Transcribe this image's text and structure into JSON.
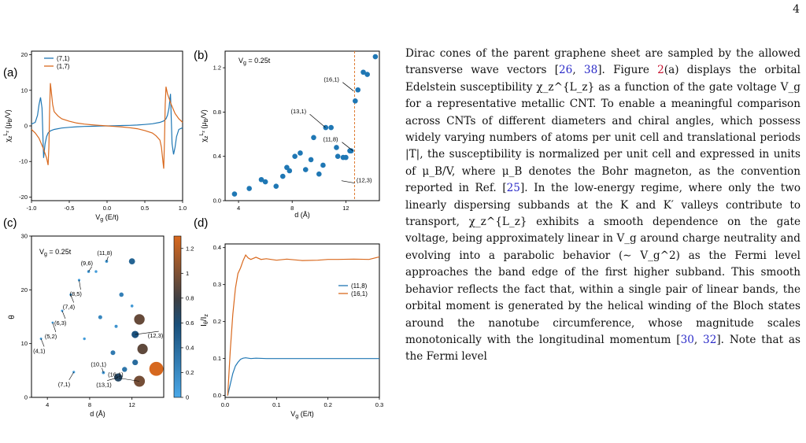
{
  "page_number": "4",
  "figure": {
    "panels": [
      {
        "label": "(a)"
      },
      {
        "label": "(b)"
      },
      {
        "label": "(c)"
      },
      {
        "label": "(d)"
      }
    ],
    "colors": {
      "blue": "#1f77b4",
      "orange": "#d9691e",
      "guide": "#e07b30"
    }
  },
  "chart_data": [
    {
      "type": "line",
      "panel": "(a)",
      "xlabel": "V_g (E/t)",
      "ylabel": "χ_z^{L_z} (μ_B/V)",
      "xlim": [
        -1.0,
        1.0
      ],
      "ylim": [
        -21,
        21
      ],
      "x_ticks": [
        "-1.0",
        "-0.5",
        "0.0",
        "0.5",
        "1.0"
      ],
      "y_ticks": [
        "-20",
        "-10",
        "0",
        "10",
        "20"
      ],
      "legend": "top-left",
      "series": [
        {
          "name": "(7,1)",
          "color": "#1f77b4",
          "x": [
            -1.0,
            -0.95,
            -0.92,
            -0.9,
            -0.88,
            -0.86,
            -0.85,
            -0.84,
            -0.83,
            -0.82,
            -0.8,
            -0.78,
            -0.75,
            -0.7,
            -0.6,
            -0.5,
            -0.4,
            -0.3,
            -0.2,
            -0.1,
            0.0,
            0.1,
            0.2,
            0.3,
            0.4,
            0.5,
            0.6,
            0.7,
            0.75,
            0.78,
            0.8,
            0.82,
            0.83,
            0.84,
            0.85,
            0.86,
            0.88,
            0.9,
            0.92,
            0.95,
            1.0
          ],
          "y": [
            0.5,
            1,
            3,
            6,
            8,
            5,
            -2,
            -9,
            -7,
            -5,
            -3,
            -2,
            -1.4,
            -1,
            -0.6,
            -0.4,
            -0.25,
            -0.15,
            -0.1,
            -0.05,
            0,
            0.05,
            0.1,
            0.15,
            0.25,
            0.4,
            0.6,
            1,
            1.4,
            2,
            3,
            5,
            7,
            9,
            2,
            -5,
            -8,
            -6,
            -3,
            -1,
            -0.5
          ]
        },
        {
          "name": "(1,7)",
          "color": "#d9691e",
          "x": [
            -1.0,
            -0.95,
            -0.9,
            -0.85,
            -0.8,
            -0.78,
            -0.77,
            -0.76,
            -0.75,
            -0.74,
            -0.72,
            -0.7,
            -0.65,
            -0.6,
            -0.5,
            -0.4,
            -0.3,
            -0.2,
            -0.1,
            0.0,
            0.1,
            0.2,
            0.3,
            0.4,
            0.5,
            0.6,
            0.65,
            0.7,
            0.72,
            0.74,
            0.75,
            0.76,
            0.77,
            0.78,
            0.8,
            0.85,
            0.9,
            0.95,
            1.0
          ],
          "y": [
            -1,
            -2,
            -3.5,
            -6,
            -9,
            -11,
            -6,
            4,
            12,
            10,
            6,
            4,
            2.8,
            2,
            1.3,
            0.8,
            0.5,
            0.3,
            0.15,
            0,
            -0.15,
            -0.3,
            -0.5,
            -0.8,
            -1.3,
            -2,
            -2.8,
            -4,
            -6,
            -10,
            -12,
            -4,
            6,
            11,
            9,
            6,
            3.5,
            2,
            1
          ]
        }
      ]
    },
    {
      "type": "scatter",
      "panel": "(b)",
      "xlabel": "d (Å)",
      "ylabel": "χ_z^{L_z} (μ_B/V)",
      "annotation": "V_g = 0.25t",
      "xlim": [
        3,
        14.5
      ],
      "ylim": [
        0,
        1.35
      ],
      "x_ticks": [
        "4",
        "8",
        "12"
      ],
      "y_ticks": [
        "0.0",
        "0.4",
        "0.8",
        "1.2"
      ],
      "vline_x": 12.65,
      "x": [
        3.7,
        4.8,
        5.7,
        6.0,
        6.8,
        7.3,
        7.6,
        7.8,
        8.2,
        8.6,
        9.0,
        9.4,
        9.6,
        10.0,
        10.3,
        10.5,
        10.9,
        11.3,
        11.4,
        11.8,
        12.0,
        12.3,
        12.4,
        12.7,
        12.9,
        13.3,
        13.6,
        14.2
      ],
      "y": [
        0.06,
        0.11,
        0.19,
        0.17,
        0.13,
        0.22,
        0.3,
        0.27,
        0.4,
        0.43,
        0.28,
        0.37,
        0.57,
        0.24,
        0.32,
        0.66,
        0.66,
        0.48,
        0.4,
        0.39,
        0.39,
        0.45,
        0.45,
        0.9,
        1.0,
        1.16,
        1.14,
        1.3
      ],
      "labels": [
        {
          "text": "(16,1)",
          "x": 12.7,
          "y": 0.99
        },
        {
          "text": "(13,1)",
          "x": 10.6,
          "y": 0.66
        },
        {
          "text": "(11,8)",
          "x": 12.65,
          "y": 0.45
        },
        {
          "text": "(12,3)",
          "x": 11.5,
          "y": 0.18
        }
      ]
    },
    {
      "type": "scatter",
      "panel": "(c)",
      "xlabel": "d (Å)",
      "ylabel": "θ",
      "annotation": "V_g = 0.25t",
      "xlim": [
        2.5,
        15
      ],
      "ylim": [
        0,
        30
      ],
      "x_ticks": [
        "4",
        "8",
        "12"
      ],
      "y_ticks": [
        "0",
        "10",
        "20",
        "30"
      ],
      "colorbar": {
        "ticks": [
          "0",
          "0.2",
          "0.4",
          "0.6",
          "0.8",
          "1",
          "1.2"
        ],
        "range": [
          0,
          1.3
        ]
      },
      "points": [
        {
          "x": 3.4,
          "y": 10.9,
          "v": 0.05
        },
        {
          "x": 4.5,
          "y": 13.9,
          "v": 0.04
        },
        {
          "x": 5.4,
          "y": 16.1,
          "v": 0.05
        },
        {
          "x": 6.2,
          "y": 19.1,
          "v": 0.05
        },
        {
          "x": 6.5,
          "y": 4.7,
          "v": 0.06
        },
        {
          "x": 7.0,
          "y": 21.8,
          "v": 0.06
        },
        {
          "x": 7.5,
          "y": 10.9,
          "v": 0.08
        },
        {
          "x": 7.9,
          "y": 23.4,
          "v": 0.1
        },
        {
          "x": 8.6,
          "y": 23.4,
          "v": 0.08
        },
        {
          "x": 9.0,
          "y": 14.9,
          "v": 0.22
        },
        {
          "x": 9.3,
          "y": 4.6,
          "v": 0.11
        },
        {
          "x": 9.6,
          "y": 25.3,
          "v": 0.12
        },
        {
          "x": 10.2,
          "y": 8.3,
          "v": 0.3
        },
        {
          "x": 10.5,
          "y": 13.2,
          "v": 0.14
        },
        {
          "x": 10.7,
          "y": 3.7,
          "v": 0.66
        },
        {
          "x": 11.0,
          "y": 19.1,
          "v": 0.26
        },
        {
          "x": 11.3,
          "y": 5.2,
          "v": 0.33
        },
        {
          "x": 12.0,
          "y": 25.3,
          "v": 0.45
        },
        {
          "x": 12.0,
          "y": 17.0,
          "v": 0.1
        },
        {
          "x": 12.3,
          "y": 11.7,
          "v": 0.57
        },
        {
          "x": 12.3,
          "y": 6.5,
          "v": 0.4
        },
        {
          "x": 12.7,
          "y": 3.0,
          "v": 0.97
        },
        {
          "x": 12.7,
          "y": 14.5,
          "v": 0.92
        },
        {
          "x": 13.0,
          "y": 9.0,
          "v": 0.9
        },
        {
          "x": 14.3,
          "y": 5.3,
          "v": 1.29
        }
      ],
      "labels": [
        {
          "text": "(4,1)",
          "x": 3.4,
          "y": 10.9
        },
        {
          "text": "(5,2)",
          "x": 4.5,
          "y": 13.9
        },
        {
          "text": "(6,3)",
          "x": 5.4,
          "y": 16.1
        },
        {
          "text": "(7,4)",
          "x": 6.2,
          "y": 19.1
        },
        {
          "text": "(8,5)",
          "x": 7.0,
          "y": 21.8
        },
        {
          "text": "(9,6)",
          "x": 7.9,
          "y": 23.4
        },
        {
          "text": "(11,8)",
          "x": 9.6,
          "y": 25.3
        },
        {
          "text": "(12,3)",
          "x": 12.3,
          "y": 11.7
        },
        {
          "text": "(7,1)",
          "x": 6.5,
          "y": 4.7
        },
        {
          "text": "(10,1)",
          "x": 9.3,
          "y": 4.6
        },
        {
          "text": "(16,1)",
          "x": 12.7,
          "y": 3.0
        },
        {
          "text": "(13,1)",
          "x": 10.7,
          "y": 3.7
        }
      ]
    },
    {
      "type": "line",
      "panel": "(d)",
      "xlabel": "V_g (E/t)",
      "ylabel": "I_θ/I_z",
      "xlim": [
        0.0,
        0.3
      ],
      "ylim": [
        0.0,
        0.4
      ],
      "x_ticks": [
        "0.0",
        "0.1",
        "0.2",
        "0.3"
      ],
      "y_ticks": [
        "0.0",
        "0.1",
        "0.2",
        "0.3",
        "0.4"
      ],
      "legend": "right",
      "series": [
        {
          "name": "(11,8)",
          "color": "#1f77b4",
          "x": [
            0.005,
            0.01,
            0.015,
            0.02,
            0.025,
            0.03,
            0.035,
            0.04,
            0.05,
            0.06,
            0.08,
            0.1,
            0.15,
            0.2,
            0.25,
            0.3
          ],
          "y": [
            0.0,
            0.03,
            0.06,
            0.08,
            0.09,
            0.098,
            0.101,
            0.102,
            0.1,
            0.101,
            0.1,
            0.1,
            0.1,
            0.1,
            0.1,
            0.1
          ]
        },
        {
          "name": "(16,1)",
          "color": "#d9691e",
          "x": [
            0.005,
            0.01,
            0.015,
            0.02,
            0.025,
            0.03,
            0.035,
            0.04,
            0.045,
            0.05,
            0.06,
            0.07,
            0.08,
            0.1,
            0.12,
            0.15,
            0.18,
            0.2,
            0.22,
            0.25,
            0.28,
            0.3
          ],
          "y": [
            0.0,
            0.12,
            0.22,
            0.29,
            0.33,
            0.345,
            0.365,
            0.38,
            0.372,
            0.368,
            0.374,
            0.368,
            0.37,
            0.366,
            0.369,
            0.365,
            0.366,
            0.368,
            0.368,
            0.369,
            0.368,
            0.375
          ]
        }
      ]
    }
  ],
  "body_text": {
    "p1": "Dirac cones of the parent graphene sheet are sampled by the allowed transverse wave vectors [",
    "c1": "26",
    "p2": ", ",
    "c2": "38",
    "p3": "]. Figure ",
    "f1": "2",
    "p4": "(a) displays the orbital Edelstein susceptibility χ_z^{L_z} as a function of the gate voltage V_g for a representative metallic CNT. To enable a meaningful comparison across CNTs of different diameters and chiral angles, which possess widely varying numbers of atoms per unit cell and translational periods |T|, the susceptibility is normalized per unit cell and expressed in units of μ_B/V, where μ_B denotes the Bohr magneton, as the convention reported in Ref. [",
    "c3": "25",
    "p5": "]. In the low-energy regime, where only the two linearly dispersing subbands at the K and K′ valleys contribute to transport, χ_z^{L_z} exhibits a smooth dependence on the gate voltage, being approximately linear in V_g around charge neutrality and evolving into a parabolic behavior (∼ V_g^2) as the Fermi level approaches the band edge of the first higher subband. This smooth behavior reflects the fact that, within a single pair of linear bands, the orbital moment is generated by the helical winding of the Bloch states around the nanotube circumference, whose magnitude scales monotonically with the longitudinal momentum [",
    "c4": "30",
    "p6": ", ",
    "c5": "32",
    "p7": "]. Note that as the Fermi level"
  }
}
